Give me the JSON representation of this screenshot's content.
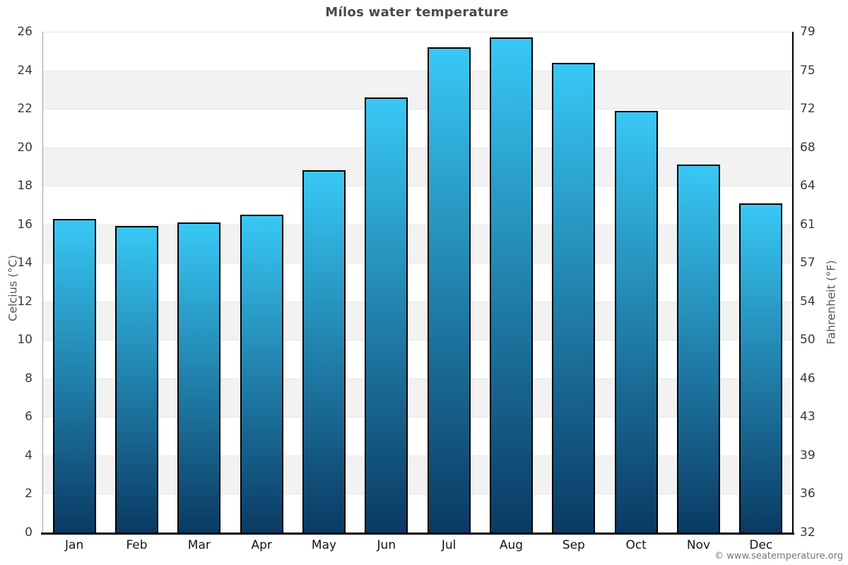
{
  "page": {
    "title": "Mílos water temperature",
    "watermark": "© www.seatemperature.org"
  },
  "chart_data": {
    "type": "bar",
    "title": "Mílos water temperature",
    "categories": [
      "Jan",
      "Feb",
      "Mar",
      "Apr",
      "May",
      "Jun",
      "Jul",
      "Aug",
      "Sep",
      "Oct",
      "Nov",
      "Dec"
    ],
    "values": [
      16.3,
      15.9,
      16.1,
      16.5,
      18.8,
      22.6,
      25.2,
      25.7,
      24.4,
      21.9,
      19.1,
      17.1
    ],
    "value_unit": "°C",
    "ylabel_left": "Celcius (°C)",
    "ylabel_right": "Fahrenheit (°F)",
    "ylim_celsius": [
      0,
      26
    ],
    "yticks_celsius": [
      0,
      2,
      4,
      6,
      8,
      10,
      12,
      14,
      16,
      18,
      20,
      22,
      24,
      26
    ],
    "yticks_fahrenheit": [
      32,
      36,
      39,
      43,
      46,
      50,
      54,
      57,
      61,
      64,
      68,
      72,
      75,
      79
    ],
    "legend_position": "none",
    "grid": "alternating horizontal bands every 2°C",
    "colors": {
      "bar_gradient_top": "#38c8f5",
      "bar_gradient_bottom": "#0a3a63",
      "bar_border": "#000000",
      "band_gray": "#f2f2f2",
      "band_white": "#ffffff",
      "gridline": "#e6e6e6",
      "title_text": "#4a4a4a",
      "tick_text": "#3a3a3a",
      "axis_label_text": "#555555",
      "watermark_text": "#767676"
    }
  }
}
